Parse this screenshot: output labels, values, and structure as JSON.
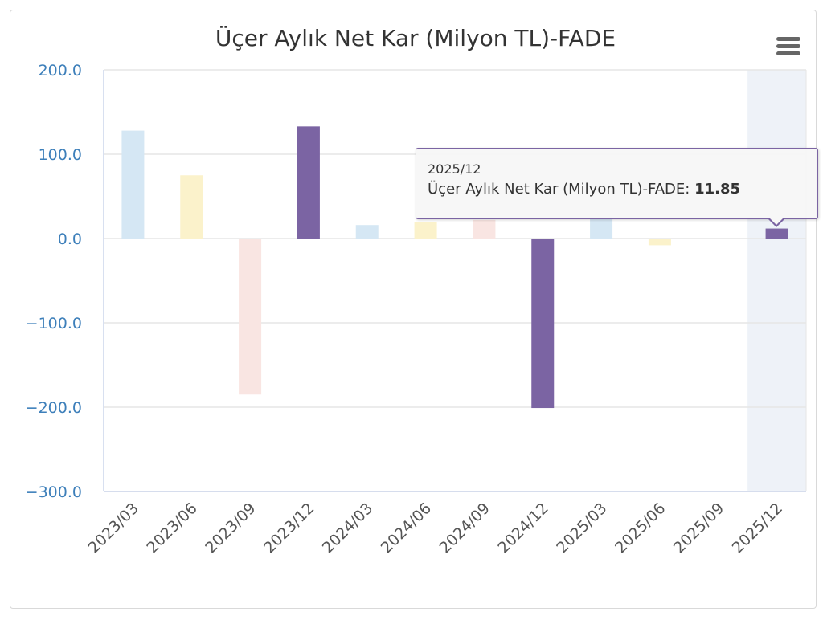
{
  "chart_data": {
    "type": "bar",
    "title": "Üçer Aylık Net Kar (Milyon TL)-FADE",
    "categories": [
      "2023/03",
      "2023/06",
      "2023/09",
      "2023/12",
      "2024/03",
      "2024/06",
      "2024/09",
      "2024/12",
      "2025/03",
      "2025/06",
      "2025/09",
      "2025/12"
    ],
    "values": [
      128,
      75,
      -185,
      133,
      16,
      20,
      22,
      -201,
      25,
      -8,
      0,
      11.85
    ],
    "bar_colors": [
      "#d5e7f4",
      "#fbf2cb",
      "#f9e5e2",
      "#7b64a3",
      "#d5e7f4",
      "#fbf2cb",
      "#f9e5e2",
      "#7b64a3",
      "#d5e7f4",
      "#fbf2cb",
      "#f9e5e2",
      "#7b64a3"
    ],
    "ylim": [
      -300,
      200
    ],
    "yticks": [
      200,
      100,
      0,
      -100,
      -200,
      -300
    ],
    "ytick_labels": [
      "200.0",
      "100.0",
      "0.0",
      "-100.0",
      "-200.0",
      "-300.0"
    ],
    "xlabel": "",
    "ylabel": "",
    "grid": true,
    "highlighted_category": "2025/12"
  },
  "tooltip": {
    "date": "2025/12",
    "series_label": "Üçer Aylık Net Kar (Milyon TL)-FADE",
    "separator": ":",
    "value": "11.85"
  },
  "colors": {
    "axis_label": "#3d7fba",
    "grid": "#e6e6e6",
    "highlight_band": "#eef2f8",
    "title": "#333333"
  },
  "menu": {
    "icon": "hamburger-menu-icon"
  }
}
